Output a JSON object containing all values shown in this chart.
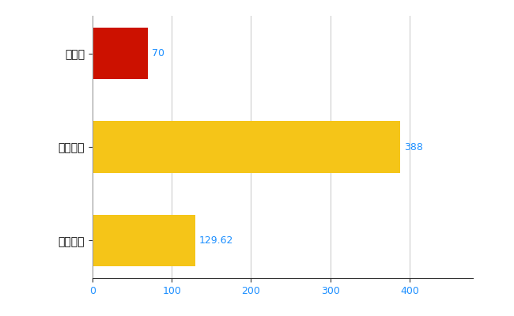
{
  "categories": [
    "全国平均",
    "全国最大",
    "大分県"
  ],
  "values": [
    129.62,
    388,
    70
  ],
  "bar_colors": [
    "#F5C518",
    "#F5C518",
    "#CC1100"
  ],
  "value_labels": [
    "129.62",
    "388",
    "70"
  ],
  "xlim": [
    0,
    480
  ],
  "xticks": [
    0,
    100,
    200,
    300,
    400
  ],
  "background_color": "#FFFFFF",
  "grid_color": "#CCCCCC",
  "label_color": "#1E90FF",
  "bar_height": 0.55,
  "figsize": [
    6.5,
    4.0
  ],
  "dpi": 100
}
